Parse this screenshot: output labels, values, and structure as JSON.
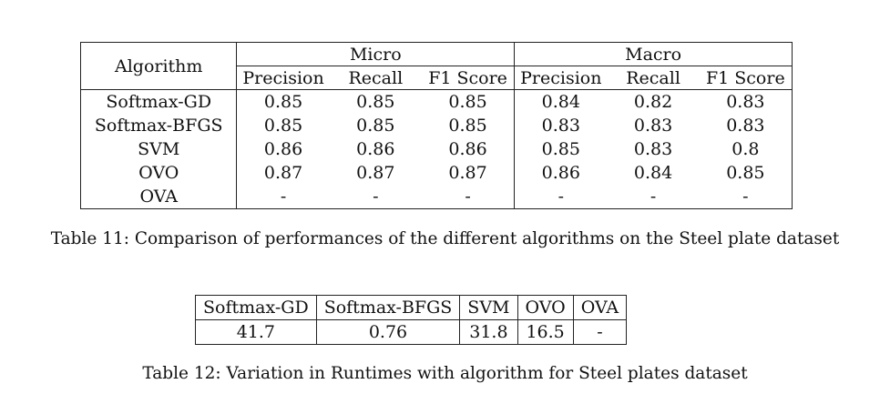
{
  "table11": {
    "col_algorithm": "Algorithm",
    "group_micro": "Micro",
    "group_macro": "Macro",
    "subheaders": [
      "Precision",
      "Recall",
      "F1 Score",
      "Precision",
      "Recall",
      "F1 Score"
    ],
    "rows": [
      {
        "name": "Softmax-GD",
        "vals": [
          "0.85",
          "0.85",
          "0.85",
          "0.84",
          "0.82",
          "0.83"
        ]
      },
      {
        "name": "Softmax-BFGS",
        "vals": [
          "0.85",
          "0.85",
          "0.85",
          "0.83",
          "0.83",
          "0.83"
        ]
      },
      {
        "name": "SVM",
        "vals": [
          "0.86",
          "0.86",
          "0.86",
          "0.85",
          "0.83",
          "0.8"
        ]
      },
      {
        "name": "OVO",
        "vals": [
          "0.87",
          "0.87",
          "0.87",
          "0.86",
          "0.84",
          "0.85"
        ]
      },
      {
        "name": "OVA",
        "vals": [
          "-",
          "-",
          "-",
          "-",
          "-",
          "-"
        ]
      }
    ],
    "caption": "Table 11: Comparison of performances of the different algorithms on the Steel plate dataset"
  },
  "table12": {
    "headers": [
      "Softmax-GD",
      "Softmax-BFGS",
      "SVM",
      "OVO",
      "OVA"
    ],
    "values": [
      "41.7",
      "0.76",
      "31.8",
      "16.5",
      "-"
    ],
    "caption": "Table 12: Variation in Runtimes with algorithm for Steel plates dataset"
  }
}
